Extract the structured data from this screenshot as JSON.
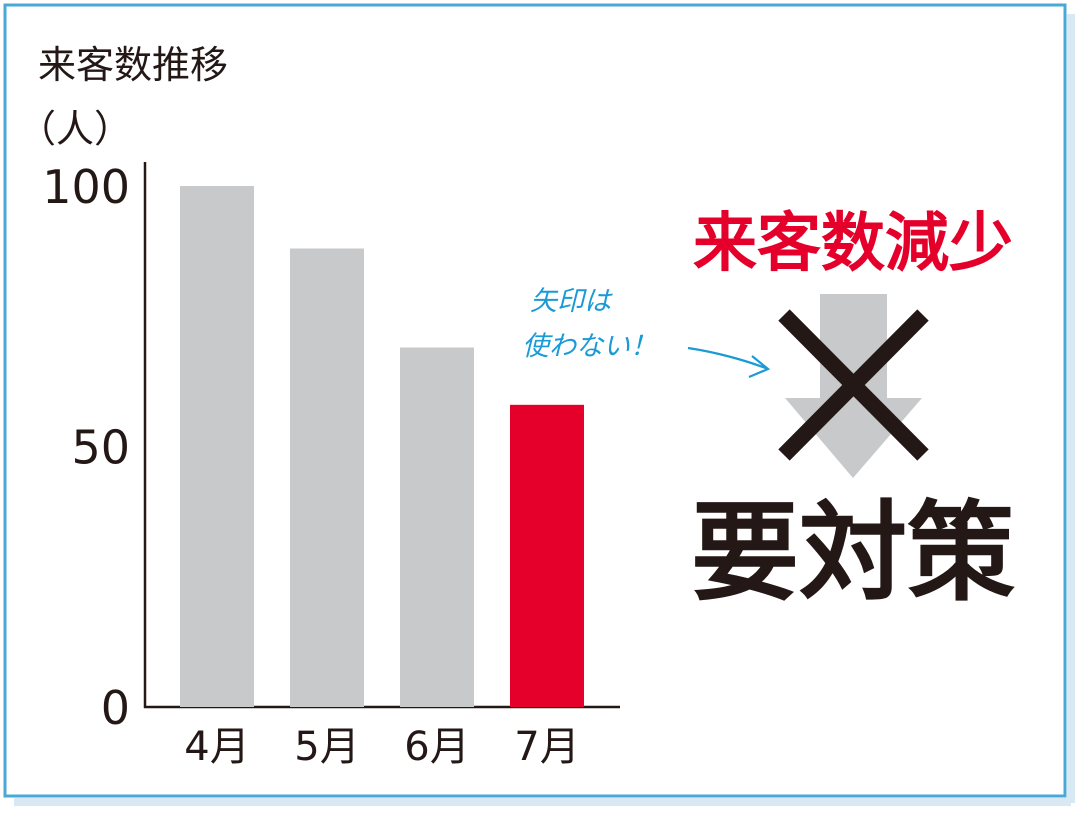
{
  "chart_data": {
    "type": "bar",
    "title": "来客数推移",
    "ylabel": "（人）",
    "categories": [
      "4月",
      "5月",
      "6月",
      "7月"
    ],
    "values": [
      100,
      88,
      69,
      58
    ],
    "ylim": [
      0,
      105
    ],
    "yticks": [
      "100",
      "50",
      "0"
    ],
    "ytick_values": [
      100,
      50,
      0
    ],
    "grid": false,
    "bar_colors": [
      "#c8c9ca",
      "#c8c9ca",
      "#c8c9ca",
      "#e4002b"
    ]
  },
  "annotation": {
    "headline": "来客数減少",
    "note_line1": "矢印は",
    "note_line2": "使わない！",
    "conclusion": "要対策",
    "headline_color": "#e4002b",
    "note_color": "#1a9ad6",
    "frame_color": "#4aa8d8",
    "arrow_color": "#c8c9ca",
    "cross_color": "#231815",
    "arrow_icon": "down-arrow-icon",
    "cross_icon": "cross-x-icon"
  }
}
